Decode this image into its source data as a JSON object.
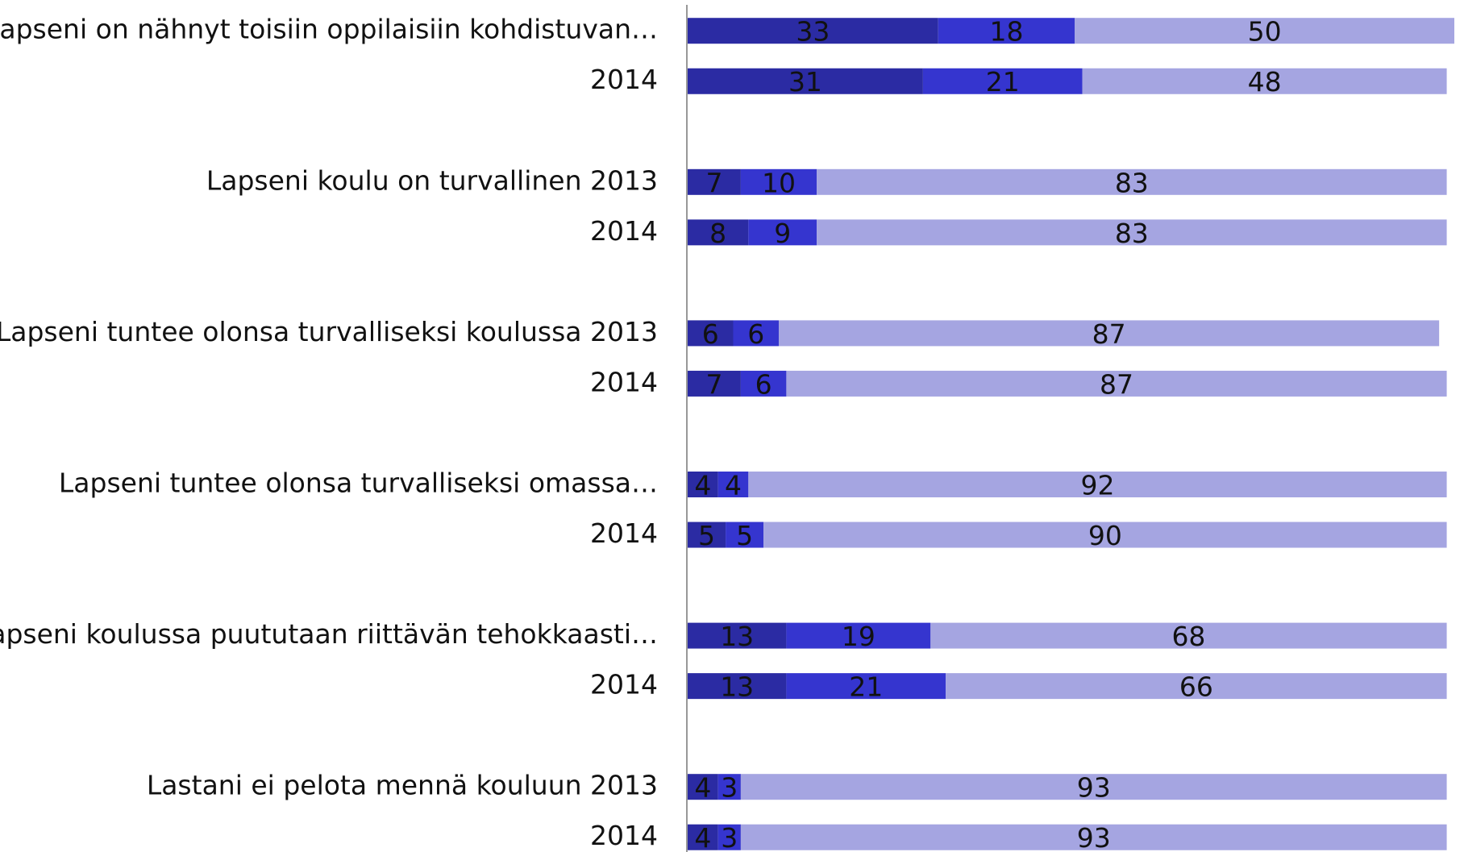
{
  "chart_data": {
    "type": "stacked-bar-horizontal",
    "categories": [
      "Lapseni on nähnyt toisiin oppilaisiin kohdistuvan…",
      "2014",
      "Lapseni koulu on turvallinen 2013",
      "2014",
      "Lapseni tuntee olonsa turvalliseksi koulussa 2013",
      "2014",
      "Lapseni tuntee olonsa turvalliseksi omassa…",
      "2014",
      "Lapseni koulussa puututaan riittävän tehokkaasti…",
      "2014",
      "Lastani ei pelota mennä kouluun 2013",
      "2014"
    ],
    "series": [
      {
        "color": "#2b2ba3",
        "values": [
          33,
          31,
          7,
          8,
          6,
          7,
          4,
          5,
          13,
          13,
          4,
          4
        ]
      },
      {
        "color": "#3535cf",
        "values": [
          18,
          21,
          10,
          9,
          6,
          6,
          4,
          5,
          19,
          21,
          3,
          3
        ]
      },
      {
        "color": "#a5a5e1",
        "values": [
          50,
          48,
          83,
          83,
          87,
          87,
          92,
          90,
          68,
          66,
          93,
          93
        ]
      }
    ]
  }
}
